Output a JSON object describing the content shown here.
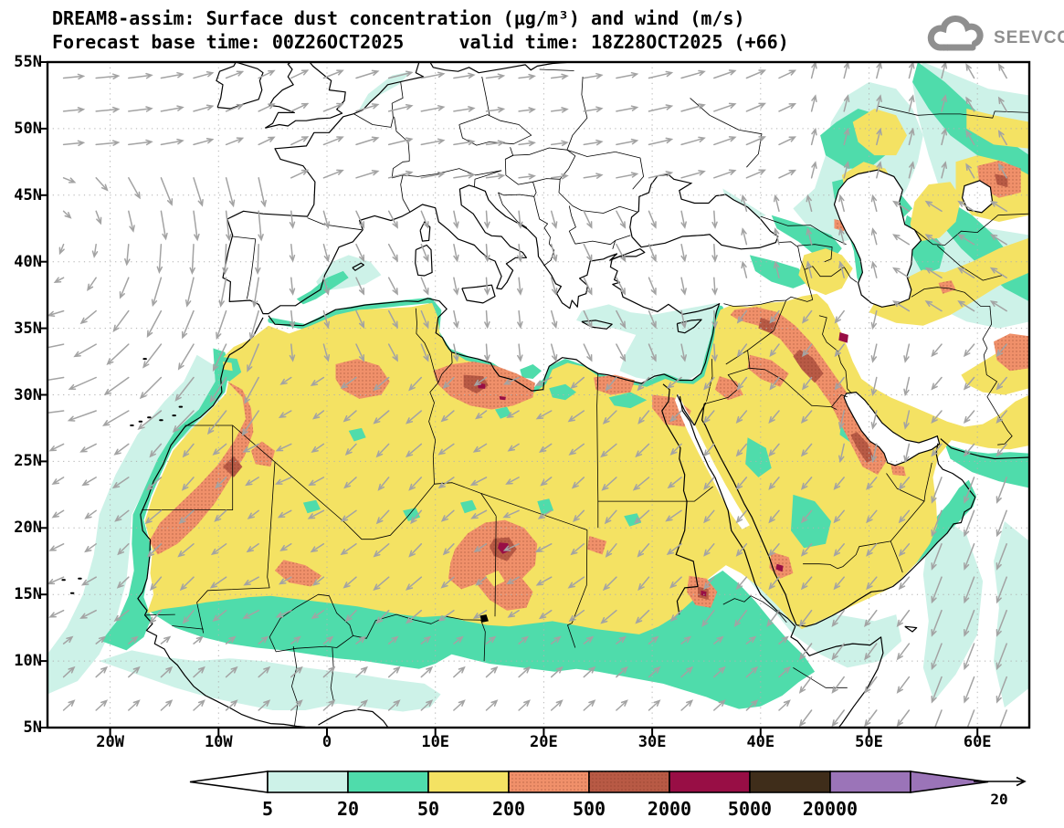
{
  "header": {
    "title_line1": "DREAM8-assim: Surface dust concentration (μg/m³) and wind (m/s)",
    "title_line2": "Forecast base time: 00Z26OCT2025     valid time: 18Z28OCT2025 (+66)",
    "logo_text": "SEEVCCC"
  },
  "axes": {
    "lat_ticks": [
      "55N",
      "50N",
      "45N",
      "40N",
      "35N",
      "30N",
      "25N",
      "20N",
      "15N",
      "10N",
      "5N"
    ],
    "lon_ticks": [
      "20W",
      "10W",
      "0",
      "10E",
      "20E",
      "30E",
      "40E",
      "50E",
      "60E"
    ]
  },
  "colorbar": {
    "tick_labels": [
      "5",
      "20",
      "50",
      "200",
      "500",
      "2000",
      "5000",
      "20000"
    ],
    "segment_colors": [
      "#ffffff",
      "#cdf2e8",
      "#4fdcab",
      "#f4e263",
      "#f0906a",
      "#b85a45",
      "#980e45",
      "#3f2d1a",
      "#9b74b8"
    ],
    "under_color": "#ffffff",
    "over_color": "#9b74b8"
  },
  "wind_legend": {
    "reference_label": "20"
  },
  "colors": {
    "coast": "#000000",
    "wind_arrow": "#a3a3a3",
    "grid_dots": "#b0b0b0",
    "logo_gray": "#8f8f8f"
  },
  "chart_data": {
    "type": "filled-contour-map",
    "model": "DREAM8-assim",
    "variable": "Surface dust concentration",
    "units": "μg/m³",
    "overlay_variable": "wind",
    "overlay_units": "m/s",
    "forecast_base_time": "00Z26OCT2025",
    "valid_time": "18Z28OCT2025",
    "forecast_hour": "+66",
    "map_extent": {
      "lon_min": -25.8,
      "lon_max": 64.8,
      "lat_min": 5,
      "lat_max": 55
    },
    "lat_gridlines_deg": [
      5,
      10,
      15,
      20,
      25,
      30,
      35,
      40,
      45,
      50,
      55
    ],
    "lon_gridlines_deg": [
      -20,
      -10,
      0,
      10,
      20,
      30,
      40,
      50,
      60
    ],
    "contour_levels": [
      5,
      20,
      50,
      200,
      500,
      2000,
      5000,
      20000
    ],
    "palette_bins": [
      {
        "range": "<5",
        "color": "#ffffff"
      },
      {
        "range": "5-20",
        "color": "#cdf2e8"
      },
      {
        "range": "20-50",
        "color": "#4fdcab"
      },
      {
        "range": "50-200",
        "color": "#f4e263"
      },
      {
        "range": "200-500",
        "color": "#f0906a",
        "texture": "stipple"
      },
      {
        "range": "500-2000",
        "color": "#b85a45",
        "texture": "stipple"
      },
      {
        "range": "2000-5000",
        "color": "#980e45"
      },
      {
        "range": "5000-20000",
        "color": "#3f2d1a"
      },
      {
        "range": ">20000",
        "color": "#9b74b8"
      }
    ],
    "wind_reference_ms": 20,
    "features": [
      {
        "region": "Sahara and Arabian Peninsula background",
        "value_bin": "50-200"
      },
      {
        "region": "Gulf of Sirte coast, NW Libya",
        "lon": 13.8,
        "lat": 30.8,
        "peak_bin": "2000-5000"
      },
      {
        "region": "Bodele depression, Chad",
        "lon": 16.3,
        "lat": 18.4,
        "peak_bin": "2000-5000"
      },
      {
        "region": "Eastern Sudan near Red Sea",
        "lon": 34.7,
        "lat": 15.1,
        "peak_bin": "2000-5000"
      },
      {
        "region": "Iraq-Iran border (Zagros foothills)",
        "lon": 47.6,
        "lat": 34.3,
        "peak_bin": "2000-5000"
      },
      {
        "region": "SW Saudi Arabia / Yemen border",
        "lon": 41.7,
        "lat": 17.0,
        "peak_bin": "2000-5000"
      },
      {
        "region": "Western Sahara - Mauritania coast strip",
        "lon": -10,
        "lat": 24,
        "peak_bin": "500-2000"
      },
      {
        "region": "Syria-Iraq-Persian Gulf corridor",
        "peak_bin": "500-2000"
      },
      {
        "region": "Sahel fringe and NW-Africa coastal waters",
        "value_bin": "5-50"
      },
      {
        "region": "Eastern Mediterranean off Levant/Cyprus",
        "value_bin": "5-20"
      },
      {
        "region": "Caspian lowlands and Central Asia",
        "value_bin": "5-200 patches, 200-500 spots"
      },
      {
        "region": "Arabian Sea outflow",
        "value_bin": "5-50"
      }
    ],
    "wind_flow_summary": [
      {
        "region": "NE Atlantic",
        "flow": "anticyclonic (clockwise) around Azores high"
      },
      {
        "region": "Europe north of 44N",
        "flow": "westerly to east-northeasterly"
      },
      {
        "region": "Mediterranean",
        "flow": "northerly, blowing toward Africa"
      },
      {
        "region": "Sahara/Sahel",
        "flow": "northeasterly trades toward southwest"
      },
      {
        "region": "Gulf of Guinea",
        "flow": "southwesterly monsoon toward northeast"
      },
      {
        "region": "Arabian Sea",
        "flow": "strong northerly outflow toward south"
      },
      {
        "region": "Caspian region",
        "flow": "southerly to northwesterly"
      }
    ]
  }
}
